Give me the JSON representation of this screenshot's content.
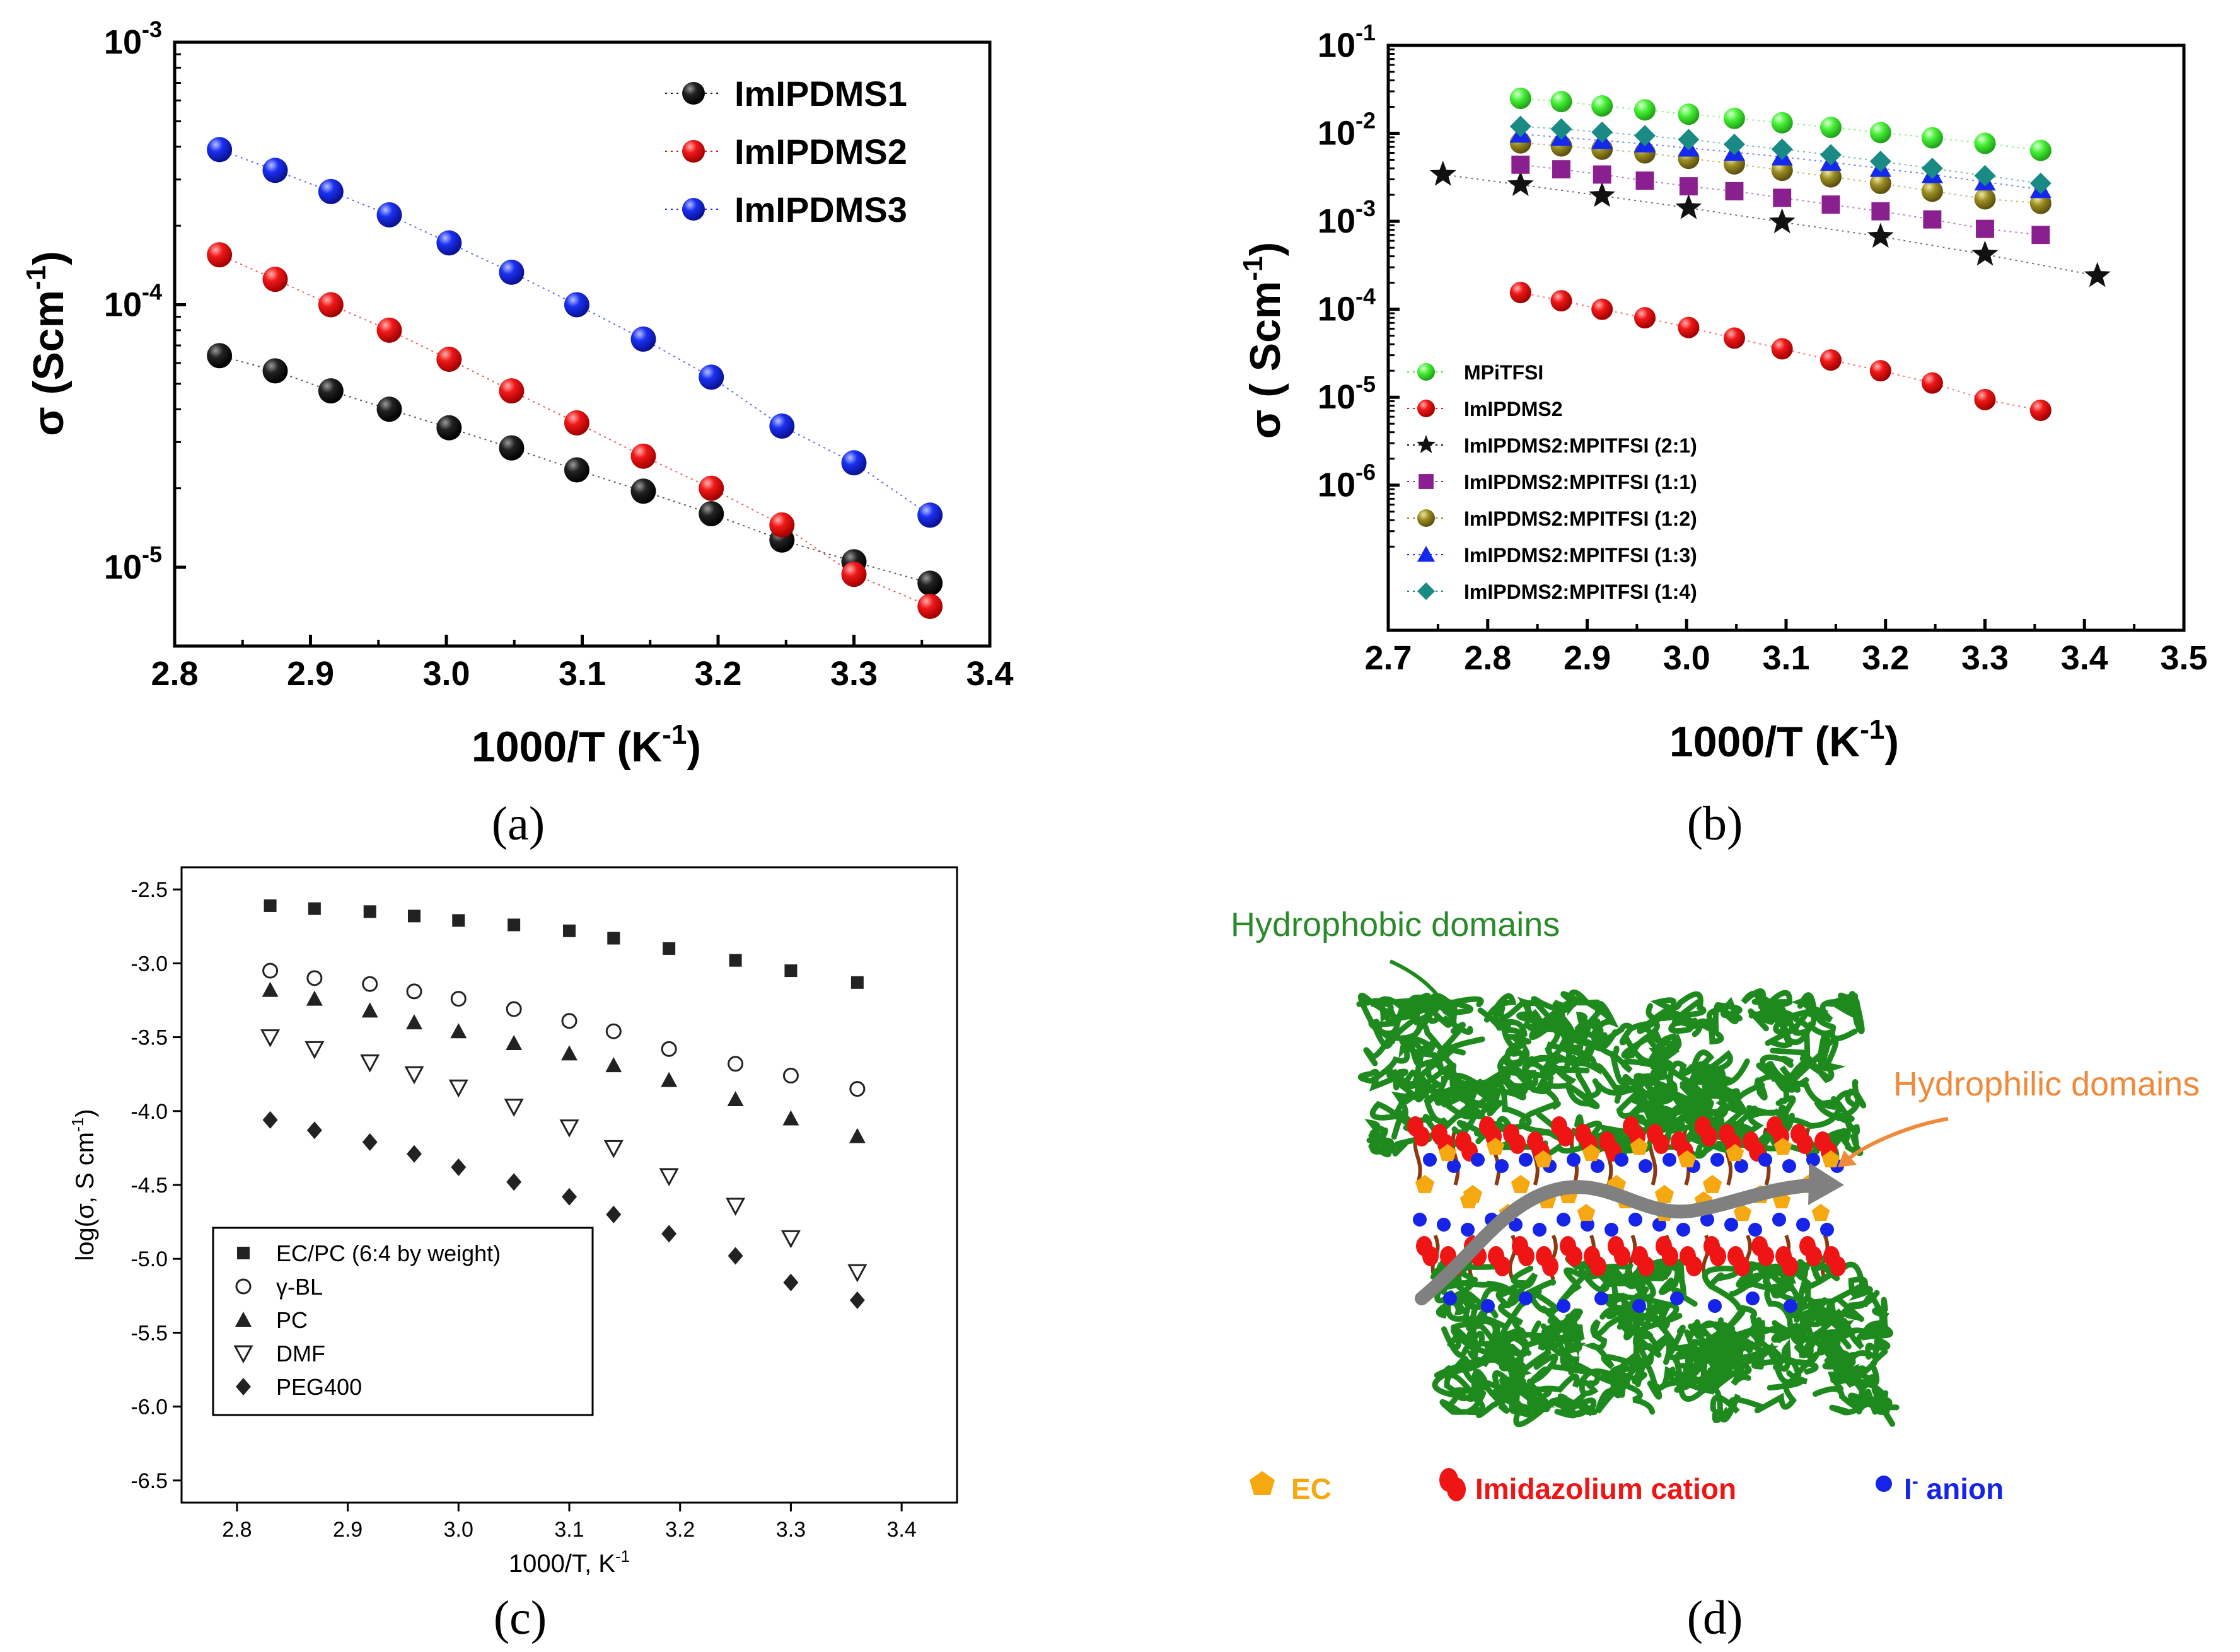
{
  "colors": {
    "series_black": "#111111",
    "series_red": "#e81010",
    "series_blue": "#1628ee",
    "mpitfsi_green": "#44ee33",
    "ratio11_purple": "#8a1f8f",
    "ratio12_olive": "#948820",
    "ratio13_blue": "#1428ee",
    "ratio14_teal": "#1a8a84",
    "polymer_green": "#1e8a1e",
    "ec_orange": "#f5a80f",
    "cation_red": "#ef1515",
    "anion_blue": "#1524e8",
    "label_green": "#2a8a2a",
    "label_orange": "#f08a3a"
  },
  "captions": {
    "a": "(a)",
    "b": "(b)",
    "c": "(c)",
    "d": "(d)"
  },
  "chart_data": [
    {
      "id": "a",
      "type": "scatter",
      "yscale": "log",
      "xlabel": "1000/T (K",
      "xlabel_sup": "-1",
      "xlabel_end": ")",
      "ylabel": "σ (Scm",
      "ylabel_sup": "-1",
      "ylabel_end": ")",
      "xlim": [
        2.8,
        3.4
      ],
      "ylim_exp": [
        -5.3,
        -3
      ],
      "xticks": [
        "2.8",
        "2.9",
        "3.0",
        "3.1",
        "3.2",
        "3.3",
        "3.4"
      ],
      "yticks": [
        {
          "base": "10",
          "exp": "-5"
        },
        {
          "base": "10",
          "exp": "-4"
        },
        {
          "base": "10",
          "exp": "-3"
        }
      ],
      "legend_position": "top-right",
      "x": [
        2.833,
        2.874,
        2.915,
        2.958,
        3.002,
        3.048,
        3.096,
        3.145,
        3.195,
        3.247,
        3.3,
        3.356
      ],
      "series": [
        {
          "name": "ImIPDMS1",
          "color_key": "series_black",
          "values": [
            6.4e-05,
            5.6e-05,
            4.7e-05,
            4e-05,
            3.4e-05,
            2.85e-05,
            2.35e-05,
            1.95e-05,
            1.6e-05,
            1.27e-05,
            1.05e-05,
            8.7e-06
          ]
        },
        {
          "name": "ImIPDMS2",
          "color_key": "series_red",
          "values": [
            0.000155,
            0.000125,
            0.0001,
            8e-05,
            6.2e-05,
            4.7e-05,
            3.55e-05,
            2.65e-05,
            2e-05,
            1.45e-05,
            9.4e-06,
            7.1e-06
          ]
        },
        {
          "name": "ImIPDMS3",
          "color_key": "series_blue",
          "values": [
            0.00039,
            0.000325,
            0.00027,
            0.00022,
            0.000172,
            0.000133,
            0.0001,
            7.4e-05,
            5.3e-05,
            3.45e-05,
            2.5e-05,
            1.58e-05
          ]
        }
      ]
    },
    {
      "id": "b",
      "type": "scatter",
      "yscale": "log",
      "xlabel": "1000/T (K",
      "xlabel_sup": "-1",
      "xlabel_end": ")",
      "ylabel": "σ ( Scm",
      "ylabel_sup": "-1",
      "ylabel_end": ")",
      "xlim": [
        2.7,
        3.5
      ],
      "ylim_exp": [
        -7.65,
        -1
      ],
      "xticks": [
        "2.7",
        "2.8",
        "2.9",
        "3.0",
        "3.1",
        "3.2",
        "3.3",
        "3.4",
        "3.5"
      ],
      "yticks": [
        {
          "base": "10",
          "exp": "-6"
        },
        {
          "base": "10",
          "exp": "-5"
        },
        {
          "base": "10",
          "exp": "-4"
        },
        {
          "base": "10",
          "exp": "-3"
        },
        {
          "base": "10",
          "exp": "-2"
        },
        {
          "base": "10",
          "exp": "-1"
        }
      ],
      "legend_position": "bottom-left",
      "x": [
        2.833,
        2.874,
        2.915,
        2.958,
        3.002,
        3.048,
        3.096,
        3.145,
        3.195,
        3.247,
        3.3,
        3.356
      ],
      "series": [
        {
          "name": "MPiTFSI",
          "marker": "circle",
          "color_key": "mpitfsi_green",
          "values": [
            0.025,
            0.023,
            0.0205,
            0.0185,
            0.0165,
            0.0148,
            0.0132,
            0.0117,
            0.0102,
            0.0089,
            0.0077,
            0.0064
          ]
        },
        {
          "name": "ImIPDMS2",
          "marker": "circle",
          "color_key": "series_red",
          "values": [
            0.000155,
            0.000125,
            0.0001,
            8e-05,
            6.2e-05,
            4.7e-05,
            3.55e-05,
            2.65e-05,
            2e-05,
            1.45e-05,
            9.4e-06,
            7.1e-06
          ]
        },
        {
          "name": "ImIPDMS2:MPITFSI (2:1)",
          "marker": "star",
          "color_key": "series_black",
          "x": [
            2.755,
            2.833,
            2.915,
            3.002,
            3.096,
            3.195,
            3.3,
            3.413
          ],
          "values": [
            0.0034,
            0.0026,
            0.00195,
            0.00142,
            0.00098,
            0.00067,
            0.00042,
            0.00024
          ]
        },
        {
          "name": "ImIPDMS2:MPITFSI (1:1)",
          "marker": "square",
          "color_key": "ratio11_purple",
          "values": [
            0.0044,
            0.0039,
            0.0034,
            0.0029,
            0.0025,
            0.0022,
            0.00185,
            0.00155,
            0.0013,
            0.00105,
            0.00082,
            0.0007
          ]
        },
        {
          "name": "ImIPDMS2:MPITFSI (1:2)",
          "marker": "circle",
          "color_key": "ratio12_olive",
          "values": [
            0.0078,
            0.0072,
            0.0066,
            0.006,
            0.0052,
            0.0045,
            0.0038,
            0.0032,
            0.0027,
            0.0022,
            0.0018,
            0.0016
          ]
        },
        {
          "name": "ImIPDMS2:MPITFSI (1:3)",
          "marker": "triangle",
          "color_key": "ratio13_blue",
          "values": [
            0.0098,
            0.009,
            0.0083,
            0.0076,
            0.0068,
            0.0061,
            0.0054,
            0.0047,
            0.004,
            0.0034,
            0.0028,
            0.0023
          ]
        },
        {
          "name": "ImIPDMS2:MPITFSI (1:4)",
          "marker": "diamond",
          "color_key": "ratio14_teal",
          "values": [
            0.012,
            0.0112,
            0.0103,
            0.0094,
            0.0085,
            0.0075,
            0.0066,
            0.0057,
            0.0048,
            0.004,
            0.0033,
            0.0027
          ]
        }
      ]
    },
    {
      "id": "c",
      "type": "scatter",
      "xlabel": "1000/T, K",
      "xlabel_sup": "-1",
      "ylabel": "log(σ, S cm",
      "ylabel_sup": "-1",
      "ylabel_end": ")",
      "xlim": [
        2.75,
        3.45
      ],
      "ylim": [
        -6.65,
        -2.35
      ],
      "xticks": [
        "2.8",
        "2.9",
        "3.0",
        "3.1",
        "3.2",
        "3.3",
        "3.4"
      ],
      "yticks": [
        "-2.5",
        "-3.0",
        "-3.5",
        "-4.0",
        "-4.5",
        "-5.0",
        "-5.5",
        "-6.0",
        "-6.5"
      ],
      "legend_position": "bottom-left",
      "x": [
        2.83,
        2.87,
        2.92,
        2.96,
        3.0,
        3.05,
        3.1,
        3.14,
        3.19,
        3.25,
        3.3,
        3.36
      ],
      "series": [
        {
          "name": "EC/PC (6:4 by weight)",
          "marker": "square",
          "values": [
            -2.61,
            -2.63,
            -2.65,
            -2.68,
            -2.71,
            -2.74,
            -2.78,
            -2.83,
            -2.9,
            -2.98,
            -3.05,
            -3.13
          ]
        },
        {
          "name": "γ-BL",
          "marker": "circle-open",
          "values": [
            -3.05,
            -3.1,
            -3.14,
            -3.19,
            -3.24,
            -3.31,
            -3.39,
            -3.46,
            -3.58,
            -3.68,
            -3.76,
            -3.85
          ]
        },
        {
          "name": "PC",
          "marker": "triangle",
          "values": [
            -3.18,
            -3.24,
            -3.32,
            -3.4,
            -3.46,
            -3.54,
            -3.61,
            -3.69,
            -3.79,
            -3.92,
            -4.05,
            -4.17
          ]
        },
        {
          "name": "DMF",
          "marker": "triangle-down-open",
          "values": [
            -3.5,
            -3.58,
            -3.67,
            -3.75,
            -3.84,
            -3.97,
            -4.11,
            -4.25,
            -4.44,
            -4.64,
            -4.86,
            -5.09
          ]
        },
        {
          "name": "PEG400",
          "marker": "diamond",
          "values": [
            -4.06,
            -4.13,
            -4.21,
            -4.29,
            -4.38,
            -4.48,
            -4.58,
            -4.7,
            -4.83,
            -4.98,
            -5.16,
            -5.28
          ]
        }
      ]
    }
  ],
  "diagram_d": {
    "hydrophobic_label": "Hydrophobic domains",
    "hydrophilic_label": "Hydrophilic domains",
    "legend": [
      {
        "label": "EC",
        "color_key": "ec_orange"
      },
      {
        "label": "Imidazolium cation",
        "color_key": "cation_red"
      },
      {
        "label": "I",
        "sup": "-",
        "label_end": " anion",
        "color_key": "anion_blue"
      }
    ]
  }
}
